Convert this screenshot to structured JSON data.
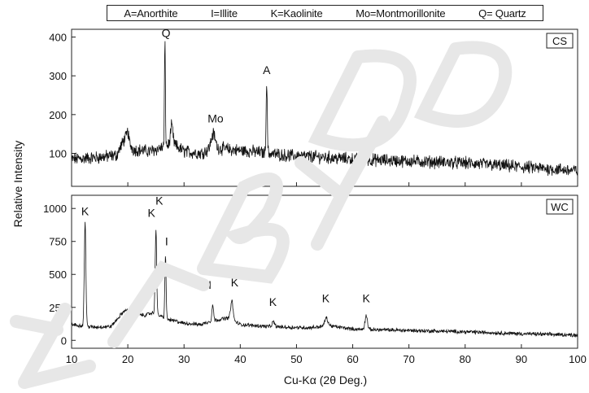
{
  "legend_text": {
    "anorthite": "A=Anorthite",
    "illite": "I=Illite",
    "kaolinite": "K=Kaolinite",
    "montmorillonite": "Mo=Montmorillonite",
    "quartz": "Q= Quartz"
  },
  "chart_data": {
    "type": "line",
    "xlabel": "Cu-Kα (2θ Deg.)",
    "ylabel": "Relative Intensity",
    "x_ticks": [
      10,
      20,
      30,
      40,
      50,
      60,
      70,
      80,
      90,
      100
    ],
    "xlim": [
      10,
      100
    ],
    "panels": [
      {
        "id": "CS",
        "label": "CS",
        "ylim": [
          15,
          420
        ],
        "y_ticks": [
          100,
          200,
          300,
          400
        ],
        "background": [
          [
            10,
            85
          ],
          [
            15,
            90
          ],
          [
            18,
            95
          ],
          [
            19.5,
            140
          ],
          [
            21,
            110
          ],
          [
            24,
            105
          ],
          [
            26,
            115
          ],
          [
            28,
            125
          ],
          [
            30,
            105
          ],
          [
            33,
            100
          ],
          [
            35,
            115
          ],
          [
            38,
            110
          ],
          [
            42,
            105
          ],
          [
            48,
            95
          ],
          [
            55,
            90
          ],
          [
            60,
            85
          ],
          [
            70,
            80
          ],
          [
            80,
            75
          ],
          [
            90,
            65
          ],
          [
            100,
            55
          ]
        ],
        "peaks": [
          {
            "x": 26.6,
            "height": 380,
            "width": 0.12
          },
          {
            "x": 44.7,
            "height": 285,
            "width": 0.15
          },
          {
            "x": 27.8,
            "height": 170,
            "width": 0.3
          },
          {
            "x": 35.2,
            "height": 150,
            "width": 0.5
          },
          {
            "x": 20.0,
            "height": 155,
            "width": 0.25
          }
        ],
        "noise": 14,
        "annotations": [
          {
            "text": "Q",
            "x": 26.8,
            "y": 400
          },
          {
            "text": "Mo",
            "x": 35.6,
            "y": 180
          },
          {
            "text": "A",
            "x": 44.7,
            "y": 305
          }
        ]
      },
      {
        "id": "WC",
        "label": "WC",
        "ylim": [
          -60,
          1100
        ],
        "y_ticks": [
          0,
          250,
          500,
          750,
          1000
        ],
        "background": [
          [
            10,
            120
          ],
          [
            11,
            115
          ],
          [
            14,
            100
          ],
          [
            17,
            105
          ],
          [
            19.5,
            230
          ],
          [
            21,
            200
          ],
          [
            23,
            190
          ],
          [
            24.5,
            210
          ],
          [
            27,
            160
          ],
          [
            30,
            130
          ],
          [
            33,
            120
          ],
          [
            35,
            150
          ],
          [
            38,
            170
          ],
          [
            40,
            120
          ],
          [
            43,
            110
          ],
          [
            48,
            100
          ],
          [
            52,
            95
          ],
          [
            56,
            110
          ],
          [
            60,
            85
          ],
          [
            65,
            80
          ],
          [
            70,
            75
          ],
          [
            75,
            70
          ],
          [
            80,
            65
          ],
          [
            90,
            50
          ],
          [
            100,
            40
          ]
        ],
        "peaks": [
          {
            "x": 12.4,
            "height": 900,
            "width": 0.2
          },
          {
            "x": 25.0,
            "height": 850,
            "width": 0.18
          },
          {
            "x": 26.7,
            "height": 650,
            "width": 0.15
          },
          {
            "x": 35.1,
            "height": 270,
            "width": 0.2
          },
          {
            "x": 38.5,
            "height": 300,
            "width": 0.3
          },
          {
            "x": 45.9,
            "height": 140,
            "width": 0.3
          },
          {
            "x": 55.3,
            "height": 170,
            "width": 0.4
          },
          {
            "x": 62.4,
            "height": 190,
            "width": 0.3
          }
        ],
        "noise": 12,
        "annotations": [
          {
            "text": "K",
            "x": 12.4,
            "y": 950
          },
          {
            "text": "K",
            "x": 24.2,
            "y": 935
          },
          {
            "text": "K",
            "x": 25.6,
            "y": 1030
          },
          {
            "text": "I",
            "x": 26.9,
            "y": 720
          },
          {
            "text": "I",
            "x": 34.6,
            "y": 390
          },
          {
            "text": "K",
            "x": 39.0,
            "y": 410
          },
          {
            "text": "K",
            "x": 45.8,
            "y": 260
          },
          {
            "text": "K",
            "x": 55.2,
            "y": 290
          },
          {
            "text": "K",
            "x": 62.4,
            "y": 290
          }
        ]
      }
    ]
  }
}
